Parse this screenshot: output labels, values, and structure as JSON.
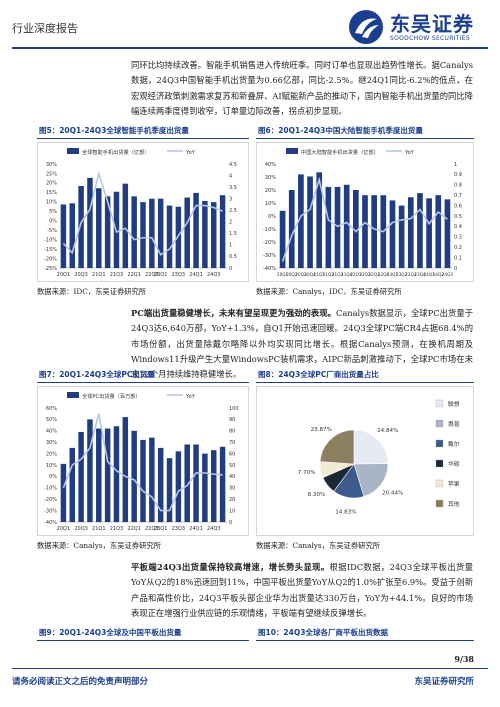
{
  "header": {
    "section_title": "行业深度报告",
    "brand_cn": "东吴证券",
    "brand_en": "SOODCHOW SECURITIES"
  },
  "paragraphs": {
    "p1": "同环比均持续改善。智能手机销售进入传统旺季。同时订单也显现出趋势性增长。据Canalys数据，24Q3中国智能手机出货量为0.66亿部，同比-2.5%。继24Q1同比-6.2%的低点，在宏观经济政策刺激需求复苏和新叠屏、AI赋能新产品的推动下，国内智能手机出货量的同比降幅连续两季度得到收窄，订单量边际改善，拐点初步显现。",
    "p2_bold": "PC端出货量稳健增长，未来有望呈现更为强劲的表现。",
    "p2_rest": "Canalys数据显示，全球PC出货量于24Q3达6,640万部，YoY+1.3%，自Q1开始迅速回暖。24Q3全球PC端CR4占据68.4%的市场份额，出货量除戴尔略降以外均实现同比增长。根据Canalys预测，在换机周期及Windows11升级产生大量WindowsPC装机需求，AIPC新品刺激推动下，全球PC市场在未来12个月持续维持稳健增长。",
    "p3_bold": "平板端24Q3出货量保持较高增速，增长势头显现。",
    "p3_rest": "根据IDC数据，24Q3全球平板出货量YoY从Q2的18%迅速回到11%，中国平板出货量YoY从Q2的1.0%扩张至6.9%。受益于创新产品和高性价比，24Q3平板头部企业华为出货量达330万台，YoY为+44.1%。良好的市场表现正在增强行业供应链的乐观情绪，平板端有望继续反弹增长。"
  },
  "figures": {
    "fig5": {
      "caption": "图5：20Q1-24Q3全球智能手机季度出货量",
      "source": "数据来源：IDC，东吴证券研究所"
    },
    "fig6": {
      "caption": "图6：20Q1-24Q3中国大陆智能手机季度出货量",
      "source": "数据来源：Canalys，IDC，东吴证券研究所"
    },
    "fig7": {
      "caption": "图7：20Q1-24Q3全球PC出货量",
      "source": "数据来源：Canalys，东吴证券研究所"
    },
    "fig8": {
      "caption": "图8：24Q3全球PC厂商出货量占比",
      "source": "数据来源：Canalys，东吴证券研究所"
    },
    "fig9": {
      "caption": "图9：20Q1-24Q3全球及中国平板出货量"
    },
    "fig10": {
      "caption": "图10：24Q3全球各厂商平板出货数据"
    }
  },
  "chart_data": [
    {
      "id": "fig5",
      "type": "bar",
      "categories": [
        "20Q1",
        "20Q2",
        "20Q3",
        "20Q4",
        "21Q1",
        "21Q2",
        "21Q3",
        "21Q4",
        "22Q1",
        "22Q2",
        "22Q3",
        "22Q4",
        "23Q1",
        "23Q2",
        "23Q3",
        "23Q4",
        "24Q1",
        "24Q2",
        "24Q3"
      ],
      "x_tick_labels": [
        "20Q1",
        "20Q3",
        "21Q1",
        "21Q3",
        "22Q1",
        "22Q3",
        "23Q1",
        "23Q3",
        "24Q1",
        "24Q3"
      ],
      "series": [
        {
          "name": "全球智能手机出货量（亿部）",
          "axis": "right",
          "kind": "bar",
          "values": [
            2.75,
            2.8,
            3.55,
            3.9,
            3.45,
            3.1,
            3.3,
            3.65,
            3.1,
            2.85,
            3.0,
            3.0,
            2.7,
            2.65,
            3.05,
            3.25,
            2.9,
            2.85,
            3.15
          ]
        },
        {
          "name": "YoY",
          "axis": "left",
          "kind": "line",
          "values": [
            -12,
            -17,
            -1,
            6,
            25,
            10,
            -6,
            -4,
            -10,
            -9,
            -9,
            -18,
            -15,
            -8,
            -1,
            8,
            8,
            7,
            5
          ]
        }
      ],
      "left_axis": {
        "ylim": [
          -25,
          30
        ],
        "ticks": [
          "30%",
          "25%",
          "20%",
          "15%",
          "10%",
          "5%",
          "0%",
          "-5%",
          "-10%",
          "-15%",
          "-20%",
          "-25%"
        ]
      },
      "right_axis": {
        "ylim": [
          0,
          4.5
        ],
        "ticks": [
          "4.5",
          "4",
          "3.5",
          "3",
          "2.5",
          "2",
          "1.5",
          "1",
          "0.5",
          "0"
        ]
      },
      "colors": {
        "bar": "#1f3d80",
        "line": "#b7c6e6"
      }
    },
    {
      "id": "fig6",
      "type": "bar",
      "categories": [
        "20Q1",
        "20Q2",
        "20Q3",
        "20Q4",
        "21Q1",
        "21Q2",
        "21Q3",
        "21Q4",
        "22Q1",
        "22Q2",
        "22Q3",
        "22Q4",
        "23Q1",
        "23Q2",
        "23Q3",
        "23Q4",
        "24Q1",
        "24Q2",
        "24Q3"
      ],
      "x_tick_labels": [
        "20Q1",
        "20Q2",
        "20Q3",
        "20Q4",
        "21Q1",
        "21Q2",
        "21Q3",
        "21Q4",
        "22Q1",
        "22Q2",
        "22Q3",
        "22Q4",
        "23Q1",
        "23Q2",
        "23Q3",
        "23Q4",
        "24Q1",
        "24Q2",
        "24Q3"
      ],
      "series": [
        {
          "name": "中国大陆智能手机出货量（亿部）",
          "axis": "right",
          "kind": "bar",
          "values": [
            0.55,
            0.75,
            0.9,
            0.88,
            0.92,
            0.78,
            0.78,
            0.8,
            0.75,
            0.7,
            0.7,
            0.7,
            0.65,
            0.6,
            0.68,
            0.72,
            0.67,
            0.7,
            0.66
          ]
        },
        {
          "name": "YoY",
          "axis": "left",
          "kind": "line",
          "values": [
            -35,
            -15,
            0,
            5,
            28,
            -3,
            -8,
            -5,
            -12,
            -5,
            -10,
            -12,
            -5,
            -3,
            -2,
            5,
            -6,
            3,
            -2.5
          ]
        }
      ],
      "left_axis": {
        "ylim": [
          -40,
          40
        ],
        "ticks": [
          "40%",
          "30%",
          "20%",
          "10%",
          "0%",
          "-10%",
          "-20%",
          "-30%",
          "-40%"
        ]
      },
      "right_axis": {
        "ylim": [
          0,
          1
        ],
        "ticks": [
          "1",
          "0.9",
          "0.8",
          "0.7",
          "0.6",
          "0.5",
          "0.4",
          "0.3",
          "0.2",
          "0.1",
          "0"
        ]
      },
      "colors": {
        "bar": "#1f3d80",
        "line": "#b7c6e6"
      }
    },
    {
      "id": "fig7",
      "type": "bar",
      "categories": [
        "20Q1",
        "20Q2",
        "20Q3",
        "20Q4",
        "21Q1",
        "21Q2",
        "21Q3",
        "21Q4",
        "22Q1",
        "22Q2",
        "22Q3",
        "22Q4",
        "23Q1",
        "23Q2",
        "23Q3",
        "23Q4",
        "24Q1",
        "24Q2",
        "24Q3"
      ],
      "x_tick_labels": [
        "20Q1",
        "20Q3",
        "21Q1",
        "21Q3",
        "22Q1",
        "22Q3",
        "23Q1",
        "23Q3",
        "24Q1",
        "24Q3"
      ],
      "series": [
        {
          "name": "全球PC出货量（百万部）",
          "axis": "right",
          "kind": "bar",
          "values": [
            51,
            65,
            79,
            90,
            82,
            82,
            84,
            92,
            80,
            72,
            74,
            65,
            56,
            62,
            68,
            68,
            60,
            63,
            66
          ]
        },
        {
          "name": "YoY",
          "axis": "left",
          "kind": "line",
          "values": [
            -10,
            10,
            15,
            25,
            55,
            13,
            5,
            0,
            -3,
            -13,
            -18,
            -30,
            -30,
            -13,
            -8,
            3,
            3,
            2,
            1.3
          ]
        }
      ],
      "left_axis": {
        "ylim": [
          -40,
          60
        ],
        "ticks": [
          "60%",
          "50%",
          "40%",
          "30%",
          "20%",
          "10%",
          "0%",
          "-10%",
          "-20%",
          "-30%",
          "-40%"
        ]
      },
      "right_axis": {
        "ylim": [
          0,
          100
        ],
        "ticks": [
          "100",
          "90",
          "80",
          "70",
          "60",
          "50",
          "40",
          "30",
          "20",
          "10",
          "0"
        ]
      },
      "colors": {
        "bar": "#1f3d80",
        "line": "#b7c6e6"
      }
    },
    {
      "id": "fig8",
      "type": "pie",
      "series": [
        {
          "name": "联想",
          "value": 24.84,
          "label": "24.84%",
          "color": "#e6eaf2"
        },
        {
          "name": "惠普",
          "value": 20.44,
          "label": "20.44%",
          "color": "#a9b4c6"
        },
        {
          "name": "戴尔",
          "value": 14.83,
          "label": "14.83%",
          "color": "#3c5a8a"
        },
        {
          "name": "华硕",
          "value": 8.3,
          "label": "8.30%",
          "color": "#1b2838"
        },
        {
          "name": "苹果",
          "value": 7.7,
          "label": "7.70%",
          "color": "#f3ead3"
        },
        {
          "name": "其他",
          "value": 23.87,
          "label": "23.87%",
          "color": "#8c8060"
        }
      ]
    }
  ],
  "footer": {
    "page": "9/38",
    "disclaimer": "请务必阅读正文之后的免责声明部分",
    "institute": "东吴证券研究所"
  }
}
